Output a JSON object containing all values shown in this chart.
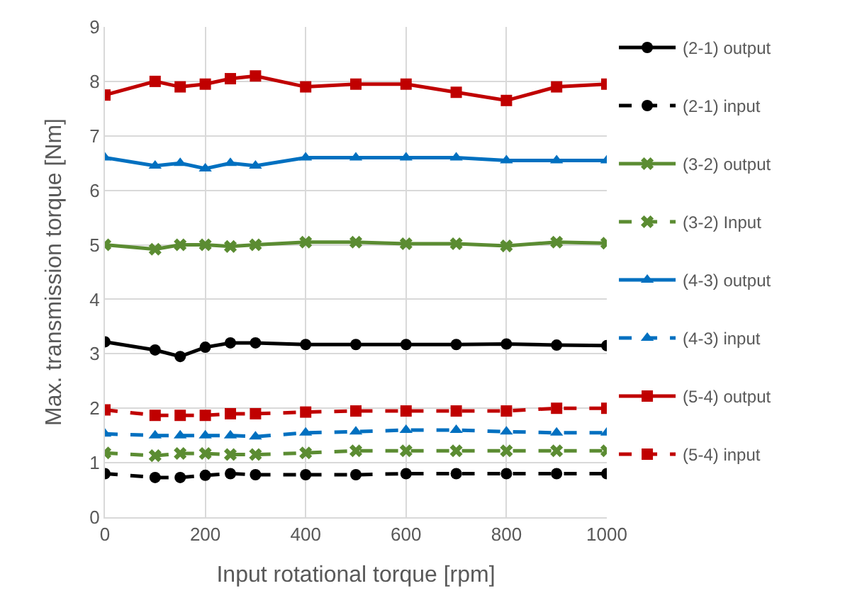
{
  "chart_data": {
    "type": "line",
    "xlabel": "Input rotational torque [rpm]",
    "ylabel": "Max. transmission torque [Nm]",
    "x": [
      0,
      100,
      150,
      200,
      250,
      300,
      400,
      500,
      600,
      700,
      800,
      900,
      1000
    ],
    "xlim": [
      0,
      1000
    ],
    "xticks": [
      0,
      200,
      400,
      600,
      800,
      1000
    ],
    "ylim": [
      0,
      9
    ],
    "yticks": [
      0,
      1,
      2,
      3,
      4,
      5,
      6,
      7,
      8,
      9
    ],
    "grid": true,
    "legend": "right",
    "series": [
      {
        "name": "(2-1) output",
        "color": "#000000",
        "marker": "circle",
        "line_style": "solid",
        "values": [
          3.22,
          3.07,
          2.95,
          3.12,
          3.2,
          3.2,
          3.17,
          3.17,
          3.17,
          3.17,
          3.18,
          3.16,
          3.15
        ]
      },
      {
        "name": "(2-1) input",
        "color": "#000000",
        "marker": "circle",
        "line_style": "dashed",
        "values": [
          0.8,
          0.73,
          0.73,
          0.77,
          0.8,
          0.78,
          0.78,
          0.78,
          0.8,
          0.8,
          0.8,
          0.8,
          0.8
        ]
      },
      {
        "name": "(3-2) output",
        "color": "#5b8c32",
        "marker": "cross",
        "line_style": "solid",
        "values": [
          5.0,
          4.92,
          5.0,
          5.0,
          4.97,
          5.0,
          5.05,
          5.05,
          5.02,
          5.02,
          4.98,
          5.05,
          5.03
        ]
      },
      {
        "name": "(3-2) Input",
        "color": "#5b8c32",
        "marker": "cross",
        "line_style": "dashed",
        "values": [
          1.18,
          1.13,
          1.17,
          1.17,
          1.15,
          1.15,
          1.18,
          1.22,
          1.22,
          1.22,
          1.22,
          1.22,
          1.22
        ]
      },
      {
        "name": "(4-3) output",
        "color": "#0070c0",
        "marker": "triangle",
        "line_style": "solid",
        "values": [
          6.6,
          6.45,
          6.5,
          6.4,
          6.5,
          6.45,
          6.6,
          6.6,
          6.6,
          6.6,
          6.55,
          6.55,
          6.55
        ]
      },
      {
        "name": "(4-3) input",
        "color": "#0070c0",
        "marker": "triangle",
        "line_style": "dashed",
        "values": [
          1.53,
          1.5,
          1.5,
          1.5,
          1.5,
          1.48,
          1.55,
          1.57,
          1.6,
          1.6,
          1.57,
          1.55,
          1.55
        ]
      },
      {
        "name": "(5-4) output",
        "color": "#c00000",
        "marker": "square",
        "line_style": "solid",
        "values": [
          7.75,
          8.0,
          7.9,
          7.95,
          8.05,
          8.1,
          7.9,
          7.95,
          7.95,
          7.8,
          7.65,
          7.9,
          7.95
        ]
      },
      {
        "name": "(5-4) input",
        "color": "#c00000",
        "marker": "square",
        "line_style": "dashed",
        "values": [
          1.97,
          1.87,
          1.87,
          1.87,
          1.9,
          1.9,
          1.93,
          1.95,
          1.95,
          1.95,
          1.95,
          2.0,
          2.0
        ]
      }
    ]
  }
}
